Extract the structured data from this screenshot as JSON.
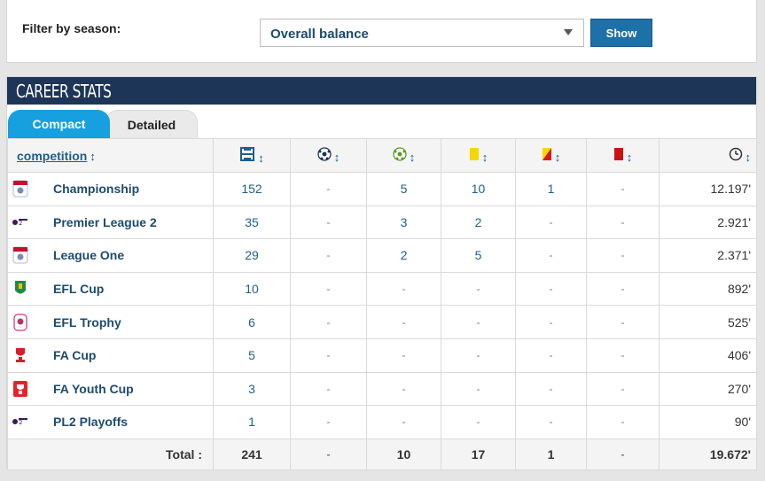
{
  "filter": {
    "label": "Filter by season:",
    "selected": "Overall balance",
    "button": "Show"
  },
  "stats": {
    "title": "CAREER STATS",
    "tabs": [
      "Compact",
      "Detailed"
    ],
    "header": {
      "competition": "competition",
      "sort_arrow": "↕",
      "columns": [
        "appearances-icon",
        "goals-icon",
        "assists-icon",
        "yellow-card-icon",
        "second-yellow-icon",
        "red-card-icon",
        "minutes-icon"
      ]
    },
    "rows": [
      {
        "competition": "Championship",
        "logo": "efl-logo",
        "apps": "152",
        "goals": "-",
        "assists": "5",
        "yellow": "10",
        "second_yellow": "1",
        "red": "-",
        "minutes": "12.197'"
      },
      {
        "competition": "Premier League 2",
        "logo": "pl2-logo",
        "apps": "35",
        "goals": "-",
        "assists": "3",
        "yellow": "2",
        "second_yellow": "-",
        "red": "-",
        "minutes": "2.921'"
      },
      {
        "competition": "League One",
        "logo": "efl-logo",
        "apps": "29",
        "goals": "-",
        "assists": "2",
        "yellow": "5",
        "second_yellow": "-",
        "red": "-",
        "minutes": "2.371'"
      },
      {
        "competition": "EFL Cup",
        "logo": "efl-cup-logo",
        "apps": "10",
        "goals": "-",
        "assists": "-",
        "yellow": "-",
        "second_yellow": "-",
        "red": "-",
        "minutes": "892'"
      },
      {
        "competition": "EFL Trophy",
        "logo": "efl-trophy-logo",
        "apps": "6",
        "goals": "-",
        "assists": "-",
        "yellow": "-",
        "second_yellow": "-",
        "red": "-",
        "minutes": "525'"
      },
      {
        "competition": "FA Cup",
        "logo": "fa-cup-logo",
        "apps": "5",
        "goals": "-",
        "assists": "-",
        "yellow": "-",
        "second_yellow": "-",
        "red": "-",
        "minutes": "406'"
      },
      {
        "competition": "FA Youth Cup",
        "logo": "fa-youth-cup-logo",
        "apps": "3",
        "goals": "-",
        "assists": "-",
        "yellow": "-",
        "second_yellow": "-",
        "red": "-",
        "minutes": "270'"
      },
      {
        "competition": "PL2 Playoffs",
        "logo": "pl2-logo",
        "apps": "1",
        "goals": "-",
        "assists": "-",
        "yellow": "-",
        "second_yellow": "-",
        "red": "-",
        "minutes": "90'"
      }
    ],
    "total": {
      "label": "Total :",
      "apps": "241",
      "goals": "-",
      "assists": "10",
      "yellow": "17",
      "second_yellow": "1",
      "red": "-",
      "minutes": "19.672'"
    }
  },
  "colors": {
    "header_bg": "#1d3557",
    "tab_active": "#16a0e0",
    "button": "#1d70a8",
    "link": "#1d5f8a"
  }
}
